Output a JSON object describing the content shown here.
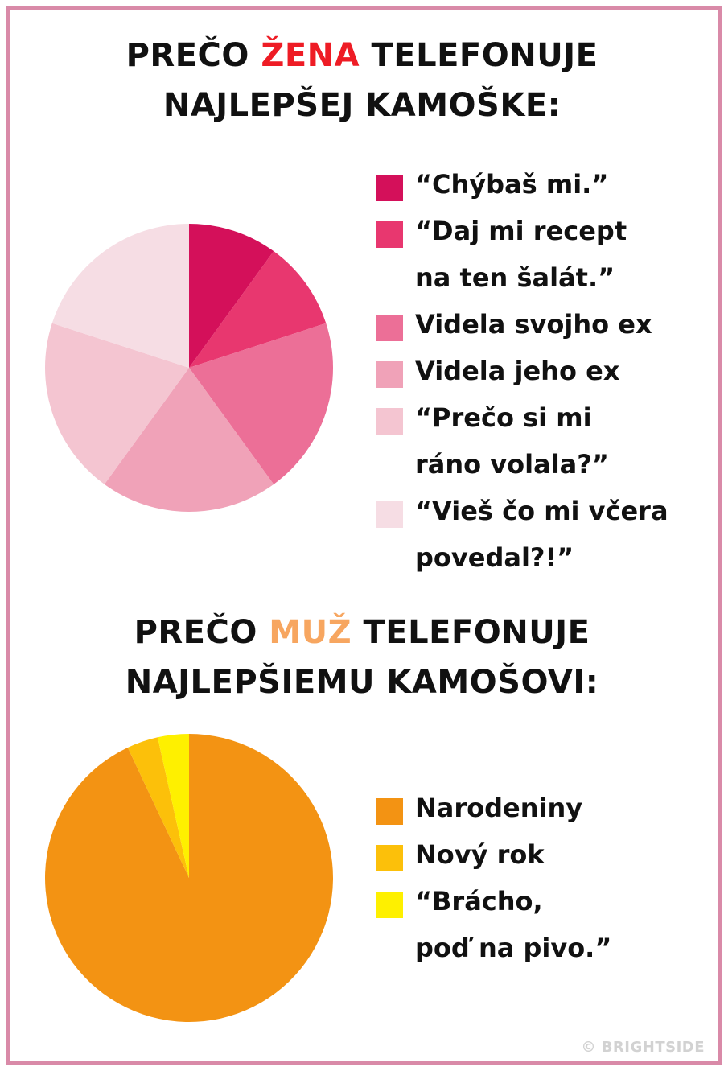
{
  "chart_data": [
    {
      "type": "pie",
      "title_parts": [
        "PREČO ",
        "ŽENA",
        " TELEFONUJE",
        "NAJLEPŠEJ KAMOŠKE:"
      ],
      "title_highlight_color": "#ee1c25",
      "categories": [
        "“Chýbaš mi.”",
        "“Daj mi recept\nna ten šalát.”",
        "Videla svojho ex",
        "Videla jeho ex",
        "“Prečo si mi\nráno volala?”",
        "“Vieš čo mi včera\npovedal?!”"
      ],
      "values": [
        10,
        10,
        20,
        20,
        20,
        20
      ],
      "colors": [
        "#d4105a",
        "#e8376f",
        "#ec6f97",
        "#f0a2b8",
        "#f4c5d1",
        "#f6dde4"
      ]
    },
    {
      "type": "pie",
      "title_parts": [
        "PREČO ",
        "MUŽ",
        " TELEFONUJE",
        "NAJLEPŠIEMU KAMOŠOVI:"
      ],
      "title_highlight_color": "#f7a660",
      "categories": [
        "Narodeniny",
        "Nový rok",
        "“Brácho,\npoď na pivo.”"
      ],
      "values": [
        93,
        3.5,
        3.5
      ],
      "colors": [
        "#f39313",
        "#fcc00a",
        "#fef000"
      ]
    }
  ],
  "credit": "© BRIGHTSIDE"
}
